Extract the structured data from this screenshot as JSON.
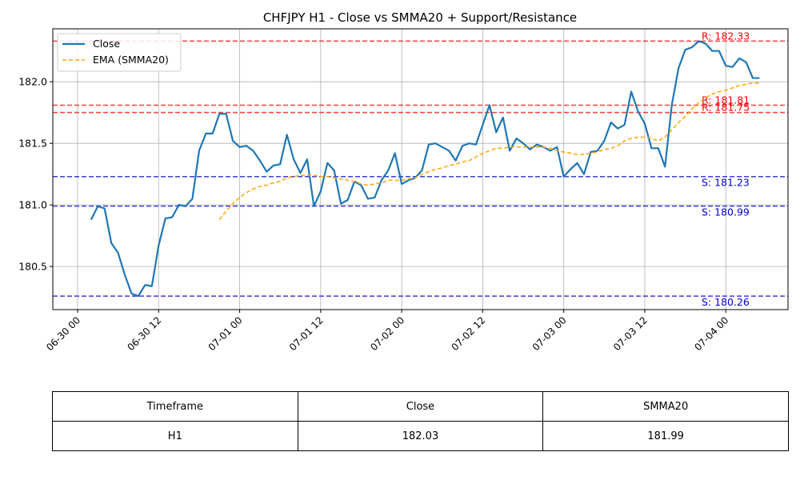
{
  "chart_data": {
    "type": "line",
    "title": "CHFJPY H1 - Close vs SMMA20 + Support/Resistance",
    "xlabel": "",
    "ylabel": "",
    "x_start": "2025-06-30 02:00",
    "x_step_hours": 1,
    "x_ticks": [
      "06-30 00",
      "06-30 12",
      "07-01 00",
      "07-01 12",
      "07-02 00",
      "07-02 12",
      "07-03 00",
      "07-03 12",
      "07-04 00"
    ],
    "y_ticks": [
      "180.5",
      "181.0",
      "181.5",
      "182.0"
    ],
    "ylim": [
      180.15,
      182.43
    ],
    "grid": true,
    "legend_position": "top-left",
    "colors": {
      "close": "#1f77b4",
      "ema": "#ffa500",
      "resistance": "#ff0000",
      "support": "#0000cd"
    },
    "series": [
      {
        "name": "Close",
        "style": "solid",
        "values": [
          180.88,
          180.99,
          180.97,
          180.69,
          180.61,
          180.43,
          180.28,
          180.26,
          180.35,
          180.34,
          180.67,
          180.89,
          180.9,
          181.0,
          180.99,
          181.05,
          181.44,
          181.58,
          181.58,
          181.74,
          181.74,
          181.52,
          181.47,
          181.48,
          181.44,
          181.36,
          181.27,
          181.32,
          181.33,
          181.57,
          181.37,
          181.26,
          181.37,
          180.99,
          181.11,
          181.34,
          181.28,
          181.01,
          181.04,
          181.19,
          181.16,
          181.05,
          181.06,
          181.2,
          181.28,
          181.42,
          181.17,
          181.2,
          181.22,
          181.28,
          181.49,
          181.5,
          181.47,
          181.44,
          181.36,
          181.48,
          181.5,
          181.49,
          181.65,
          181.81,
          181.59,
          181.71,
          181.44,
          181.54,
          181.5,
          181.45,
          181.49,
          181.47,
          181.44,
          181.47,
          181.23,
          181.29,
          181.34,
          181.25,
          181.43,
          181.44,
          181.52,
          181.67,
          181.62,
          181.65,
          181.92,
          181.76,
          181.66,
          181.46,
          181.46,
          181.31,
          181.81,
          182.11,
          182.26,
          182.28,
          182.33,
          182.31,
          182.25,
          182.25,
          182.13,
          182.12,
          182.19,
          182.16,
          182.03,
          182.03
        ]
      },
      {
        "name": "EMA (SMMA20)",
        "style": "dashed",
        "start_index": 19,
        "values": [
          180.88,
          180.95,
          181.01,
          181.06,
          181.1,
          181.13,
          181.15,
          181.16,
          181.18,
          181.19,
          181.22,
          181.23,
          181.24,
          181.24,
          181.24,
          181.23,
          181.23,
          181.22,
          181.21,
          181.2,
          181.19,
          181.17,
          181.16,
          181.17,
          181.18,
          181.2,
          181.2,
          181.2,
          181.21,
          181.22,
          181.25,
          181.27,
          181.29,
          181.3,
          181.32,
          181.33,
          181.35,
          181.36,
          181.39,
          181.42,
          181.44,
          181.46,
          181.46,
          181.47,
          181.47,
          181.47,
          181.47,
          181.47,
          181.47,
          181.46,
          181.44,
          181.43,
          181.42,
          181.41,
          181.41,
          181.42,
          181.43,
          181.45,
          181.46,
          181.48,
          181.52,
          181.54,
          181.55,
          181.55,
          181.54,
          181.52,
          181.55,
          181.61,
          181.67,
          181.72,
          181.78,
          181.83,
          181.87,
          181.9,
          181.92,
          181.93,
          181.95,
          181.97,
          181.98,
          181.99,
          181.99
        ]
      }
    ],
    "levels": [
      {
        "type": "resistance",
        "value": 182.33,
        "label": "R: 182.33"
      },
      {
        "type": "resistance",
        "value": 181.81,
        "label": "R: 181.81"
      },
      {
        "type": "resistance",
        "value": 181.75,
        "label": "R: 181.75"
      },
      {
        "type": "support",
        "value": 181.23,
        "label": "S: 181.23"
      },
      {
        "type": "support",
        "value": 180.99,
        "label": "S: 180.99"
      },
      {
        "type": "support",
        "value": 180.26,
        "label": "S: 180.26"
      }
    ]
  },
  "table": {
    "headers": [
      "Timeframe",
      "Close",
      "SMMA20"
    ],
    "rows": [
      [
        "H1",
        "182.03",
        "181.99"
      ]
    ]
  }
}
